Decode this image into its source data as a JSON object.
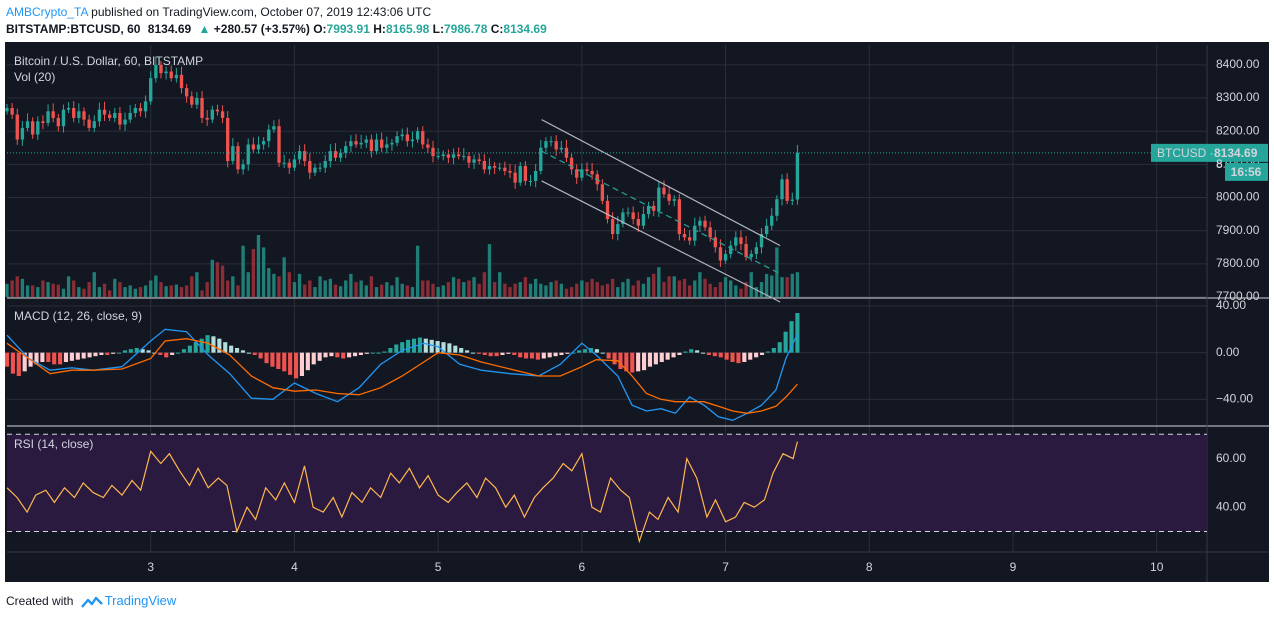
{
  "header": {
    "author": "AMBCrypto_TA",
    "published_text": "published on TradingView.com, October 07, 2019 12:43:06 UTC",
    "symbol": "BITSTAMP:BTCUSD, 60",
    "last": "8134.69",
    "change": "+280.57 (+3.57%)",
    "o_label": "O:",
    "o_value": "7993.91",
    "h_label": "H:",
    "h_value": "8165.98",
    "l_label": "L:",
    "l_value": "7986.78",
    "c_label": "C:",
    "c_value": "8134.69"
  },
  "footer": {
    "created_with": "Created with",
    "brand": "TradingView"
  },
  "colors": {
    "bg": "#131722",
    "grid": "#2a2e39",
    "up": "#26a69a",
    "down": "#ef5350",
    "vol_up": "#1f7f76",
    "vol_down": "#8b2d36",
    "macd": "#2196f3",
    "signal": "#ff6d00",
    "hist_up_strong": "#26a69a",
    "hist_up_weak": "#b2dfdb",
    "hist_dn_strong": "#ef5350",
    "hist_dn_weak": "#ffcdd2",
    "rsi": "#ffb74d",
    "rsi_band": "#2a1a40",
    "channel": "#b2b5be",
    "dotted_line": "#26a69a"
  },
  "chart_data": [
    {
      "type": "candlestick",
      "title": "Bitcoin / U.S. Dollar, 60, BITSTAMP",
      "volume_label": "Vol (20)",
      "ylim": [
        7700,
        8460
      ],
      "xlim": [
        2.0,
        10.35
      ],
      "y_ticks": [
        "8400.00",
        "8300.00",
        "8200.00",
        "8100.00",
        "8000.00",
        "7900.00",
        "7800.00",
        "7700.00"
      ],
      "y_tick_values": [
        8400,
        8300,
        8200,
        8100,
        8000,
        7900,
        7800,
        7700
      ],
      "x_ticks": [
        "3",
        "4",
        "5",
        "6",
        "7",
        "8",
        "9",
        "10"
      ],
      "x_tick_values": [
        3,
        4,
        5,
        6,
        7,
        8,
        9,
        10
      ],
      "last_price": 8134.69,
      "price_tag": "BTCUSD",
      "price_label": "8134.69",
      "countdown": "16:56",
      "partial_axis_label": "8",
      "closes": [
        8270,
        8250,
        8175,
        8210,
        8230,
        8190,
        8230,
        8225,
        8260,
        8240,
        8215,
        8265,
        8270,
        8240,
        8260,
        8235,
        8210,
        8230,
        8265,
        8250,
        8240,
        8255,
        8220,
        8235,
        8255,
        8270,
        8260,
        8290,
        8360,
        8400,
        8375,
        8380,
        8360,
        8370,
        8330,
        8305,
        8280,
        8300,
        8240,
        8235,
        8265,
        8260,
        8240,
        8110,
        8155,
        8085,
        8100,
        8160,
        8145,
        8160,
        8170,
        8205,
        8215,
        8105,
        8105,
        8090,
        8115,
        8140,
        8110,
        8075,
        8090,
        8090,
        8110,
        8140,
        8120,
        8135,
        8155,
        8170,
        8160,
        8165,
        8175,
        8140,
        8175,
        8150,
        8160,
        8165,
        8185,
        8190,
        8170,
        8175,
        8200,
        8160,
        8150,
        8125,
        8125,
        8130,
        8120,
        8130,
        8125,
        8125,
        8105,
        8115,
        8110,
        8085,
        8095,
        8090,
        8090,
        8080,
        8075,
        8045,
        8095,
        8050,
        8050,
        8080,
        8150,
        8170,
        8170,
        8145,
        8150,
        8120,
        8085,
        8060,
        8085,
        8080,
        8070,
        8040,
        7990,
        7935,
        7890,
        7920,
        7955,
        7955,
        7935,
        7915,
        7950,
        7975,
        7960,
        8030,
        8010,
        7990,
        7995,
        7890,
        7880,
        7870,
        7915,
        7930,
        7910,
        7880,
        7850,
        7810,
        7830,
        7855,
        7880,
        7860,
        7820,
        7830,
        7850,
        7890,
        7915,
        7945,
        7995,
        8055,
        7990,
        7994,
        8134.69
      ],
      "volumes": [
        16,
        20,
        25,
        22,
        14,
        14,
        12,
        20,
        18,
        16,
        15,
        10,
        25,
        20,
        12,
        10,
        18,
        30,
        12,
        16,
        8,
        22,
        18,
        12,
        14,
        10,
        12,
        14,
        20,
        26,
        18,
        13,
        14,
        15,
        12,
        14,
        25,
        30,
        8,
        18,
        45,
        42,
        38,
        20,
        25,
        14,
        62,
        30,
        58,
        75,
        60,
        35,
        28,
        25,
        48,
        30,
        18,
        28,
        15,
        20,
        12,
        25,
        20,
        22,
        15,
        13,
        20,
        28,
        18,
        20,
        14,
        25,
        12,
        15,
        18,
        14,
        24,
        16,
        14,
        12,
        62,
        20,
        20,
        16,
        12,
        14,
        18,
        24,
        22,
        18,
        20,
        24,
        16,
        30,
        64,
        18,
        30,
        16,
        12,
        16,
        18,
        24,
        16,
        22,
        16,
        14,
        18,
        20,
        16,
        10,
        12,
        16,
        20,
        18,
        22,
        18,
        14,
        16,
        22,
        12,
        18,
        22,
        14,
        20,
        16,
        24,
        28,
        36,
        18,
        25,
        25,
        20,
        22,
        14,
        20,
        30,
        22,
        16,
        12,
        18,
        24,
        20,
        14,
        10,
        18,
        30,
        12,
        18,
        28,
        26,
        60,
        24,
        24,
        28,
        30,
        40
      ]
    },
    {
      "type": "line",
      "title": "MACD (12, 26, close, 9)",
      "ylim": [
        -62,
        46
      ],
      "y_ticks": [
        "40.00",
        "0.00",
        "−40.00"
      ],
      "y_tick_values": [
        40,
        0,
        -40
      ],
      "series": [
        {
          "name": "MACD",
          "x": [
            2.0,
            2.15,
            2.3,
            2.45,
            2.6,
            2.8,
            3.0,
            3.1,
            3.25,
            3.4,
            3.55,
            3.7,
            3.85,
            4.0,
            4.15,
            4.3,
            4.45,
            4.6,
            4.75,
            4.9,
            5.0,
            5.15,
            5.3,
            5.5,
            5.7,
            5.85,
            6.0,
            6.1,
            6.25,
            6.35,
            6.45,
            6.55,
            6.65,
            6.75,
            6.85,
            6.95,
            7.05,
            7.15,
            7.25,
            7.35,
            7.42,
            7.5
          ],
          "values": [
            15,
            -5,
            -15,
            -13,
            -15,
            -12,
            10,
            20,
            18,
            -2,
            -18,
            -39,
            -40,
            -26,
            -35,
            -42,
            -30,
            -10,
            2,
            8,
            5,
            -10,
            -15,
            -18,
            -20,
            -10,
            8,
            -2,
            -20,
            -45,
            -50,
            -48,
            -52,
            -38,
            -45,
            -55,
            -58,
            -52,
            -45,
            -32,
            -5,
            16
          ]
        },
        {
          "name": "Signal",
          "x": [
            2.0,
            2.15,
            2.3,
            2.45,
            2.6,
            2.8,
            3.0,
            3.1,
            3.25,
            3.4,
            3.55,
            3.7,
            3.85,
            4.0,
            4.15,
            4.3,
            4.45,
            4.6,
            4.75,
            4.9,
            5.0,
            5.15,
            5.3,
            5.5,
            5.7,
            5.85,
            6.0,
            6.1,
            6.25,
            6.35,
            6.45,
            6.55,
            6.65,
            6.75,
            6.85,
            6.95,
            7.05,
            7.15,
            7.25,
            7.35,
            7.42,
            7.5
          ],
          "values": [
            8,
            -5,
            -18,
            -15,
            -15,
            -14,
            -5,
            10,
            12,
            8,
            -2,
            -20,
            -30,
            -33,
            -32,
            -35,
            -36,
            -30,
            -20,
            -8,
            0,
            -2,
            -8,
            -14,
            -20,
            -20,
            -12,
            -6,
            -7,
            -20,
            -35,
            -40,
            -42,
            -42,
            -42,
            -46,
            -50,
            -52,
            -50,
            -46,
            -38,
            -27
          ]
        }
      ],
      "histogram": [
        -12,
        -18,
        -20,
        -16,
        -12,
        -10,
        -8,
        -8,
        -10,
        -10,
        -8,
        -7,
        -6,
        -5,
        -4,
        -3,
        -2,
        -2,
        -1,
        0,
        2,
        3,
        4,
        3,
        2,
        0,
        -2,
        -4,
        -2,
        0,
        3,
        6,
        9,
        12,
        15,
        14,
        12,
        9,
        6,
        4,
        2,
        0,
        -2,
        -5,
        -9,
        -12,
        -14,
        -16,
        -19,
        -22,
        -20,
        -15,
        -10,
        -7,
        -4,
        -3,
        -4,
        -5,
        -4,
        -3,
        -2,
        -1,
        0,
        0,
        1,
        4,
        7,
        9,
        11,
        12,
        13,
        12,
        11,
        10,
        9,
        8,
        6,
        4,
        2,
        0,
        -1,
        -2,
        -3,
        -3,
        -2,
        -1,
        -2,
        -4,
        -5,
        -5,
        -6,
        -5,
        -4,
        -3,
        -2,
        -1,
        0,
        2,
        3,
        4,
        3,
        0,
        -5,
        -10,
        -14,
        -16,
        -17,
        -16,
        -15,
        -12,
        -10,
        -8,
        -6,
        -4,
        -2,
        1,
        3,
        2,
        0,
        -2,
        -3,
        -4,
        -6,
        -8,
        -9,
        -8,
        -6,
        -4,
        -2,
        1,
        4,
        9,
        18,
        27,
        34
      ]
    },
    {
      "type": "line",
      "title": "RSI (14, close)",
      "ylim": [
        22,
        73
      ],
      "y_ticks": [
        "60.00",
        "40.00"
      ],
      "y_tick_values": [
        60,
        40
      ],
      "bands": [
        30,
        70
      ],
      "series": [
        {
          "name": "RSI",
          "x": [
            2.0,
            2.07,
            2.14,
            2.2,
            2.27,
            2.33,
            2.4,
            2.47,
            2.53,
            2.6,
            2.67,
            2.73,
            2.8,
            2.87,
            2.93,
            3.0,
            3.07,
            3.13,
            3.2,
            3.27,
            3.33,
            3.4,
            3.47,
            3.53,
            3.6,
            3.67,
            3.73,
            3.8,
            3.87,
            3.93,
            4.0,
            4.07,
            4.13,
            4.2,
            4.27,
            4.33,
            4.4,
            4.47,
            4.53,
            4.6,
            4.67,
            4.73,
            4.8,
            4.87,
            4.93,
            5.0,
            5.07,
            5.13,
            5.2,
            5.27,
            5.33,
            5.4,
            5.47,
            5.53,
            5.6,
            5.67,
            5.73,
            5.8,
            5.87,
            5.93,
            6.0,
            6.07,
            6.13,
            6.2,
            6.27,
            6.33,
            6.4,
            6.47,
            6.53,
            6.6,
            6.67,
            6.73,
            6.8,
            6.87,
            6.93,
            7.0,
            7.07,
            7.13,
            7.2,
            7.27,
            7.33,
            7.4,
            7.47,
            7.5
          ],
          "values": [
            48,
            44,
            38,
            45,
            47,
            42,
            48,
            44,
            50,
            46,
            44,
            49,
            45,
            51,
            47,
            63,
            58,
            62,
            55,
            49,
            56,
            48,
            52,
            49,
            30,
            40,
            35,
            48,
            43,
            50,
            42,
            57,
            40,
            38,
            44,
            36,
            46,
            42,
            48,
            44,
            54,
            50,
            56,
            48,
            53,
            45,
            42,
            46,
            50,
            44,
            52,
            48,
            40,
            45,
            36,
            44,
            48,
            52,
            58,
            55,
            62,
            40,
            38,
            52,
            47,
            44,
            26,
            38,
            35,
            44,
            38,
            60,
            52,
            36,
            43,
            34,
            36,
            42,
            40,
            43,
            54,
            62,
            60,
            67
          ]
        }
      ]
    }
  ]
}
